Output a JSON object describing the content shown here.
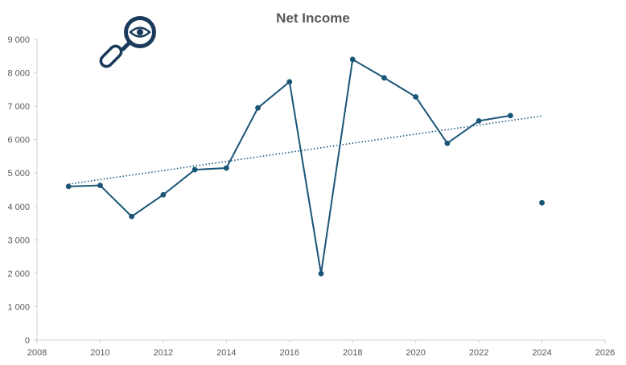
{
  "chart_data": {
    "type": "scatter",
    "title": "Net Income",
    "xlabel": "",
    "ylabel": "",
    "xlim": [
      2008,
      2026
    ],
    "ylim": [
      0,
      9000
    ],
    "x_ticks": [
      2008,
      2010,
      2012,
      2014,
      2016,
      2018,
      2020,
      2022,
      2024,
      2026
    ],
    "y_ticks": [
      0,
      1000,
      2000,
      3000,
      4000,
      5000,
      6000,
      7000,
      8000,
      9000
    ],
    "x_tick_labels": [
      "2008",
      "2010",
      "2012",
      "2014",
      "2016",
      "2018",
      "2020",
      "2022",
      "2024",
      "2026"
    ],
    "y_tick_labels": [
      "0",
      "1 000",
      "2 000",
      "3 000",
      "4 000",
      "5 000",
      "6 000",
      "7 000",
      "8 000",
      "9 000"
    ],
    "grid": false,
    "legend": "none",
    "series": [
      {
        "color": "#1a5577",
        "x": [
          2009,
          2010,
          2011,
          2012,
          2013,
          2014,
          2015,
          2016,
          2017,
          2018,
          2019,
          2020,
          2021,
          2022,
          2023,
          2024
        ],
        "y": [
          4600,
          4630,
          3700,
          4350,
          5100,
          5150,
          6950,
          7730,
          1990,
          8400,
          7850,
          7280,
          5890,
          6560,
          6720,
          4110
        ],
        "connected_until": 2023
      }
    ],
    "trendline": {
      "type": "linear",
      "color": "#1a5577",
      "x_range": [
        2009,
        2024
      ]
    }
  },
  "logo": {
    "icon": "magnifier-eye-icon",
    "color": "#1a3a5c"
  }
}
